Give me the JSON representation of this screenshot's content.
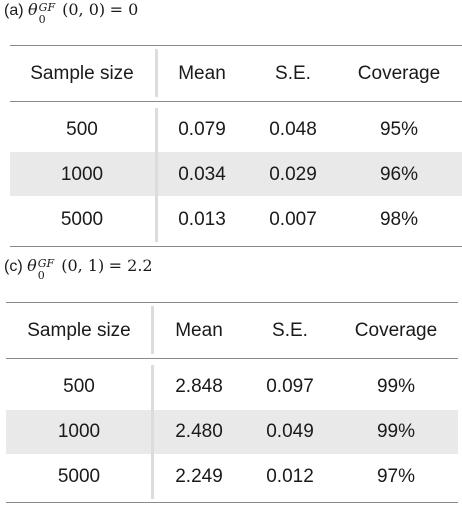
{
  "panels": [
    {
      "label": "(a)",
      "theta_sup": "GF",
      "theta_sub": "0",
      "args": "(0, 0)",
      "equals": "= 0",
      "headers": [
        "Sample size",
        "Mean",
        "S.E.",
        "Coverage"
      ],
      "rows": [
        [
          "500",
          "0.079",
          "0.048",
          "95%"
        ],
        [
          "1000",
          "0.034",
          "0.029",
          "96%"
        ],
        [
          "5000",
          "0.013",
          "0.007",
          "98%"
        ]
      ]
    },
    {
      "label": "(c)",
      "theta_sup": "GF",
      "theta_sub": "0",
      "args": "(0, 1)",
      "equals": "= 2.2",
      "headers": [
        "Sample size",
        "Mean",
        "S.E.",
        "Coverage"
      ],
      "rows": [
        [
          "500",
          "2.848",
          "0.097",
          "99%"
        ],
        [
          "1000",
          "2.480",
          "0.049",
          "99%"
        ],
        [
          "5000",
          "2.249",
          "0.012",
          "97%"
        ]
      ]
    }
  ],
  "colors": {
    "shade": "#e9e9e9",
    "rule": "#8a8a8a",
    "vline": "#dcdcdc"
  }
}
